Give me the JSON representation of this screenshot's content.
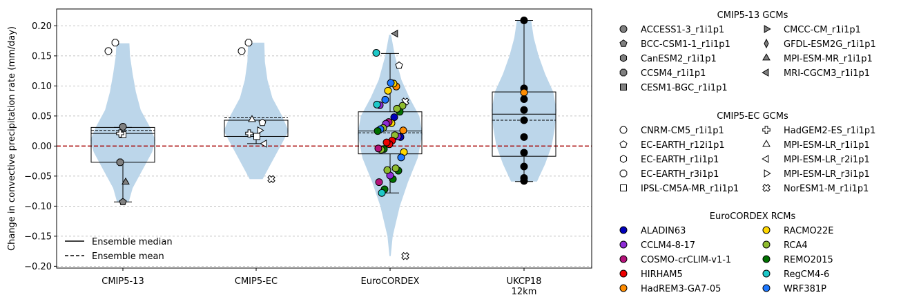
{
  "chart_data": {
    "type": "violin",
    "ylabel": "Change in convective precipitation rate (mm/day)",
    "ylim": [
      -0.203,
      0.228
    ],
    "yticks": [
      -0.2,
      -0.15,
      -0.1,
      -0.05,
      0.0,
      0.05,
      0.1,
      0.15,
      0.2
    ],
    "ytick_labels": [
      "−0.20",
      "−0.15",
      "−0.10",
      "−0.05",
      "0.00",
      "0.05",
      "0.10",
      "0.15",
      "0.20"
    ],
    "grid": "horizontal dashed",
    "reference_line": {
      "y": 0.0,
      "color": "#a50000",
      "style": "dashed"
    },
    "categories": [
      "CMIP5-13",
      "CMIP5-EC",
      "EuroCORDEX",
      "UKCP18 12km"
    ],
    "category_lines": [
      [
        "CMIP5-13"
      ],
      [
        "CMIP5-EC"
      ],
      [
        "EuroCORDEX"
      ],
      [
        "UKCP18",
        "12km"
      ]
    ],
    "line_legend": {
      "placement": "lower-left",
      "entries": [
        {
          "label": "Ensemble median",
          "style": "solid"
        },
        {
          "label": "Ensemble mean",
          "style": "dashed"
        }
      ]
    },
    "groups": [
      {
        "category": "CMIP5-13",
        "box": {
          "q1": -0.027,
          "median": 0.021,
          "q3": 0.031,
          "whisker_low": -0.093,
          "whisker_high": 0.031,
          "mean": 0.026
        },
        "violin": [
          [
            -0.093,
            0.18
          ],
          [
            -0.07,
            0.3
          ],
          [
            -0.04,
            0.6
          ],
          [
            -0.01,
            0.9
          ],
          [
            0.01,
            1.0
          ],
          [
            0.03,
            0.85
          ],
          [
            0.06,
            0.55
          ],
          [
            0.09,
            0.4
          ],
          [
            0.12,
            0.3
          ],
          [
            0.15,
            0.22
          ],
          [
            0.171,
            0.2
          ]
        ],
        "points": [
          {
            "model": "ACCESS1-3_r1i1p1",
            "value": 0.032
          },
          {
            "model": "CCSM4_r1i1p1",
            "value": -0.027
          },
          {
            "model": "MPI-ESM-MR_r1i1p1",
            "value": -0.06
          },
          {
            "model": "BCC-CSM1-1_r1i1p1",
            "value": -0.093
          },
          {
            "model": "CNRM-CM5_r1i1p1",
            "value": 0.158
          },
          {
            "model": "EC-EARTH_r3i1p1",
            "value": 0.172
          },
          {
            "model": "IPSL-CM5A-MR_r1i1p1",
            "value": 0.019
          },
          {
            "model": "HadGEM2-ES_r1i1p1",
            "value": 0.021
          }
        ]
      },
      {
        "category": "CMIP5-EC",
        "box": {
          "q1": 0.016,
          "median": 0.043,
          "q3": 0.043,
          "whisker_low": 0.004,
          "whisker_high": 0.043,
          "mean": 0.047
        },
        "violin": [
          [
            -0.055,
            0.2
          ],
          [
            -0.03,
            0.45
          ],
          [
            0.0,
            0.75
          ],
          [
            0.025,
            1.0
          ],
          [
            0.05,
            0.8
          ],
          [
            0.08,
            0.5
          ],
          [
            0.11,
            0.35
          ],
          [
            0.14,
            0.27
          ],
          [
            0.172,
            0.25
          ]
        ],
        "points": [
          {
            "model": "CNRM-CM5_r1i1p1",
            "value": 0.158
          },
          {
            "model": "EC-EARTH_r3i1p1",
            "value": 0.172
          },
          {
            "model": "EC-EARTH_r12i1p1",
            "value": 0.039
          },
          {
            "model": "MPI-ESM-LR_r1i1p1",
            "value": 0.044
          },
          {
            "model": "MPI-ESM-LR_r3i1p1",
            "value": 0.026
          },
          {
            "model": "HadGEM2-ES_r1i1p1",
            "value": 0.021
          },
          {
            "model": "IPSL-CM5A-MR_r1i1p1",
            "value": 0.016
          },
          {
            "model": "MPI-ESM-LR_r2i1p1",
            "value": 0.004
          },
          {
            "model": "NorESM1-M_r1i1p1",
            "value": -0.055
          }
        ]
      },
      {
        "category": "EuroCORDEX",
        "box": {
          "q1": -0.013,
          "median": 0.025,
          "q3": 0.057,
          "whisker_low": -0.078,
          "whisker_high": 0.154,
          "mean": 0.022
        },
        "violin": [
          [
            -0.183,
            0.02
          ],
          [
            -0.15,
            0.08
          ],
          [
            -0.1,
            0.3
          ],
          [
            -0.06,
            0.55
          ],
          [
            -0.02,
            0.85
          ],
          [
            0.02,
            1.0
          ],
          [
            0.05,
            0.9
          ],
          [
            0.08,
            0.6
          ],
          [
            0.11,
            0.35
          ],
          [
            0.15,
            0.15
          ],
          [
            0.185,
            0.03
          ]
        ],
        "points": [
          {
            "model": "RegCM4-6",
            "value": 0.155
          },
          {
            "model": "MRI-CGCM3_r1i1p1",
            "value": 0.187
          },
          {
            "model": "EC-EARTH_r12i1p1",
            "value": 0.134
          },
          {
            "model": "HadREM3-GA7-05",
            "value": 0.099
          },
          {
            "model": "RACMO22E",
            "value": 0.104
          },
          {
            "model": "WRF381P",
            "value": 0.105
          },
          {
            "model": "RACMO22E",
            "value": 0.092
          },
          {
            "model": "WRF381P",
            "value": 0.077
          },
          {
            "model": "NorESM1-M_r1i1p1",
            "value": 0.074
          },
          {
            "model": "CCLM4-8-17",
            "value": 0.068
          },
          {
            "model": "RegCM4-6",
            "value": 0.069
          },
          {
            "model": "RCA4",
            "value": 0.067
          },
          {
            "model": "REMO2015",
            "value": 0.057
          },
          {
            "model": "RCA4",
            "value": 0.062
          },
          {
            "model": "ALADIN63",
            "value": 0.048
          },
          {
            "model": "RACMO22E",
            "value": 0.038
          },
          {
            "model": "COSMO-crCLIM-v1-1",
            "value": 0.04
          },
          {
            "model": "CCLM4-8-17",
            "value": 0.037
          },
          {
            "model": "RCA4",
            "value": 0.03
          },
          {
            "model": "WRF381P",
            "value": 0.028
          },
          {
            "model": "REMO2015",
            "value": 0.025
          },
          {
            "model": "HadREM3-GA7-05",
            "value": 0.026
          },
          {
            "model": "ALADIN63",
            "value": 0.015
          },
          {
            "model": "CCLM4-8-17",
            "value": 0.016
          },
          {
            "model": "RCA4",
            "value": 0.018
          },
          {
            "model": "HIRHAM5",
            "value": 0.009
          },
          {
            "model": "HIRHAM5",
            "value": 0.003
          },
          {
            "model": "HIRHAM5",
            "value": 0.006
          },
          {
            "model": "REMO2015",
            "value": -0.005
          },
          {
            "model": "RCA4",
            "value": -0.006
          },
          {
            "model": "COSMO-crCLIM-v1-1",
            "value": -0.004
          },
          {
            "model": "RACMO22E",
            "value": -0.01
          },
          {
            "model": "WRF381P",
            "value": -0.019
          },
          {
            "model": "REMO2015",
            "value": -0.041
          },
          {
            "model": "RCA4",
            "value": -0.037
          },
          {
            "model": "REMO2015",
            "value": -0.055
          },
          {
            "model": "CCLM4-8-17",
            "value": -0.049
          },
          {
            "model": "RCA4",
            "value": -0.04
          },
          {
            "model": "REMO2015",
            "value": -0.072
          },
          {
            "model": "RegCM4-6",
            "value": -0.078
          },
          {
            "model": "COSMO-crCLIM-v1-1",
            "value": -0.06
          },
          {
            "model": "NorESM1-M_r1i1p1",
            "value": -0.183
          }
        ]
      },
      {
        "category": "UKCP18 12km",
        "box": {
          "q1": -0.017,
          "median": 0.053,
          "q3": 0.09,
          "whisker_low": -0.059,
          "whisker_high": 0.209,
          "mean": 0.043
        },
        "violin": [
          [
            -0.059,
            0.4
          ],
          [
            -0.03,
            0.65
          ],
          [
            0.0,
            0.85
          ],
          [
            0.03,
            0.95
          ],
          [
            0.06,
            1.0
          ],
          [
            0.09,
            0.9
          ],
          [
            0.12,
            0.65
          ],
          [
            0.15,
            0.45
          ],
          [
            0.18,
            0.3
          ],
          [
            0.209,
            0.22
          ]
        ],
        "points": [
          {
            "model": "UKCP18 member",
            "value": 0.209
          },
          {
            "model": "UKCP18 member",
            "value": 0.096
          },
          {
            "model": "HadREM3-GA7-05",
            "value": 0.089
          },
          {
            "model": "UKCP18 member",
            "value": 0.078
          },
          {
            "model": "UKCP18 member",
            "value": 0.06
          },
          {
            "model": "UKCP18 member",
            "value": 0.043
          },
          {
            "model": "UKCP18 member",
            "value": 0.015
          },
          {
            "model": "UKCP18 member",
            "value": -0.011
          },
          {
            "model": "UKCP18 member",
            "value": -0.034
          },
          {
            "model": "UKCP18 member",
            "value": -0.053
          },
          {
            "model": "UKCP18 member",
            "value": -0.058
          }
        ]
      }
    ],
    "marker_legend": {
      "placement": "right",
      "sections": [
        {
          "title": "CMIP5-13 GCMs",
          "columns": [
            [
              {
                "label": "ACCESS1-3_r1i1p1",
                "marker": "circle",
                "color": "#808080"
              },
              {
                "label": "BCC-CSM1-1_r1i1p1",
                "marker": "pentagon",
                "color": "#808080"
              },
              {
                "label": "CanESM2_r1i1p1",
                "marker": "hexagon",
                "color": "#808080"
              },
              {
                "label": "CCSM4_r1i1p1",
                "marker": "octagon",
                "color": "#808080"
              },
              {
                "label": "CESM1-BGC_r1i1p1",
                "marker": "square",
                "color": "#808080"
              }
            ],
            [
              {
                "label": "CMCC-CM_r1i1p1",
                "marker": "triangle-right",
                "color": "#808080"
              },
              {
                "label": "GFDL-ESM2G_r1i1p1",
                "marker": "thin-diamond",
                "color": "#808080"
              },
              {
                "label": "MPI-ESM-MR_r1i1p1",
                "marker": "triangle-up",
                "color": "#808080"
              },
              {
                "label": "MRI-CGCM3_r1i1p1",
                "marker": "triangle-left",
                "color": "#808080"
              }
            ]
          ]
        },
        {
          "title": "CMIP5-EC GCMs",
          "columns": [
            [
              {
                "label": "CNRM-CM5_r1i1p1",
                "marker": "circle",
                "color": "#ffffff"
              },
              {
                "label": "EC-EARTH_r12i1p1",
                "marker": "pentagon",
                "color": "#ffffff"
              },
              {
                "label": "EC-EARTH_r1i1p1",
                "marker": "hexagon",
                "color": "#ffffff"
              },
              {
                "label": "EC-EARTH_r3i1p1",
                "marker": "octagon",
                "color": "#ffffff"
              },
              {
                "label": "IPSL-CM5A-MR_r1i1p1",
                "marker": "square",
                "color": "#ffffff"
              }
            ],
            [
              {
                "label": "HadGEM2-ES_r1i1p1",
                "marker": "plus",
                "color": "#ffffff"
              },
              {
                "label": "MPI-ESM-LR_r1i1p1",
                "marker": "triangle-up",
                "color": "#ffffff"
              },
              {
                "label": "MPI-ESM-LR_r2i1p1",
                "marker": "triangle-left",
                "color": "#ffffff"
              },
              {
                "label": "MPI-ESM-LR_r3i1p1",
                "marker": "triangle-right",
                "color": "#ffffff"
              },
              {
                "label": "NorESM1-M_r1i1p1",
                "marker": "x",
                "color": "#ffffff"
              }
            ]
          ]
        },
        {
          "title": "EuroCORDEX RCMs",
          "columns": [
            [
              {
                "label": "ALADIN63",
                "marker": "circle",
                "color": "#0000bb"
              },
              {
                "label": "CCLM4-8-17",
                "marker": "circle",
                "color": "#8e2bd6"
              },
              {
                "label": "COSMO-crCLIM-v1-1",
                "marker": "circle",
                "color": "#b5127a"
              },
              {
                "label": "HIRHAM5",
                "marker": "circle",
                "color": "#ee0000"
              },
              {
                "label": "HadREM3-GA7-05",
                "marker": "circle",
                "color": "#ff8c00"
              }
            ],
            [
              {
                "label": "RACMO22E",
                "marker": "circle",
                "color": "#ffd700"
              },
              {
                "label": "RCA4",
                "marker": "circle",
                "color": "#8fbc2f"
              },
              {
                "label": "REMO2015",
                "marker": "circle",
                "color": "#007000"
              },
              {
                "label": "RegCM4-6",
                "marker": "circle",
                "color": "#1ec8c8"
              },
              {
                "label": "WRF381P",
                "marker": "circle",
                "color": "#1e78ff"
              }
            ]
          ]
        }
      ]
    },
    "colors": {
      "violin": "#bcd6ea",
      "grid": "#b0b0b0",
      "reference": "#a50000"
    }
  }
}
